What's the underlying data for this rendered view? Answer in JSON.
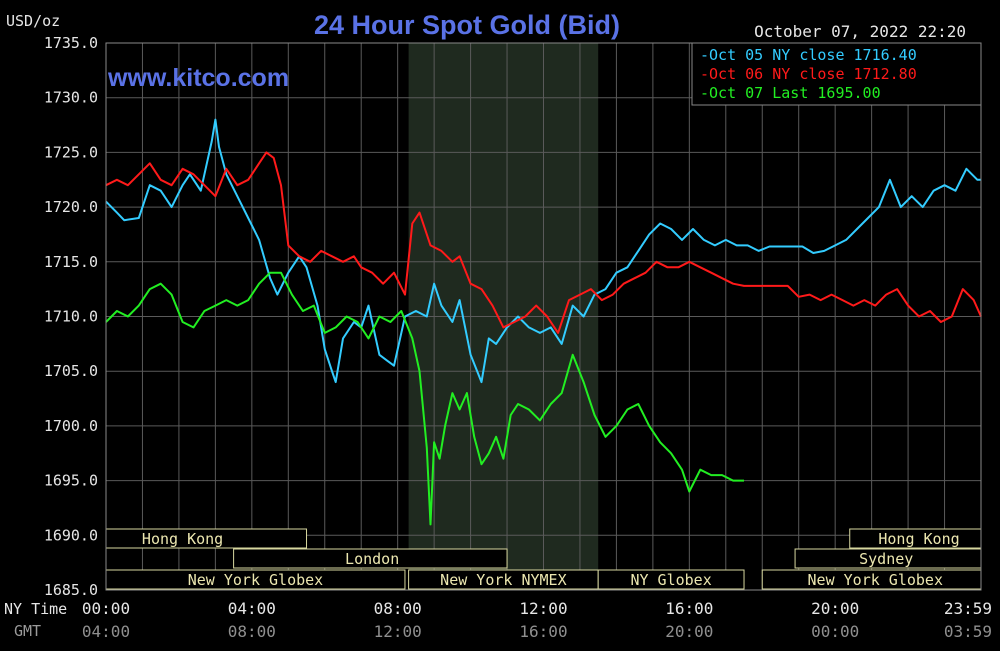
{
  "chart_data": {
    "type": "line",
    "title": "24 Hour Spot Gold (Bid)",
    "timestamp": "October 07, 2022 22:20",
    "ylabel": "USD/oz",
    "watermark": "www.kitco.com",
    "ylim": [
      1685,
      1735
    ],
    "y_ticks": [
      "1735.0",
      "1730.0",
      "1725.0",
      "1720.0",
      "1715.0",
      "1710.0",
      "1705.0",
      "1700.0",
      "1695.0",
      "1690.0",
      "1685.0"
    ],
    "xlim": [
      0,
      24
    ],
    "x_row_labels": {
      "ny": "NY Time",
      "gmt": "GMT"
    },
    "x_ticks_ny": [
      {
        "h": 0,
        "label": "00:00"
      },
      {
        "h": 4,
        "label": "04:00"
      },
      {
        "h": 8,
        "label": "08:00"
      },
      {
        "h": 12,
        "label": "12:00"
      },
      {
        "h": 16,
        "label": "16:00"
      },
      {
        "h": 20,
        "label": "20:00"
      },
      {
        "h": 24,
        "label": "23:59"
      }
    ],
    "x_ticks_gmt": [
      "04:00",
      "08:00",
      "12:00",
      "16:00",
      "20:00",
      "00:00",
      "03:59"
    ],
    "shaded_range": [
      8.3,
      13.5
    ],
    "legend_position": "top-right",
    "legend": [
      {
        "text": "Oct 05 NY close 1716.40",
        "color": "#33ccff"
      },
      {
        "text": "Oct 06 NY close 1712.80",
        "color": "#ff1a1a"
      },
      {
        "text": "Oct 07 Last 1695.00",
        "color": "#22ee22"
      }
    ],
    "sessions": [
      {
        "label": "Hong Kong",
        "row": 0,
        "start": 0,
        "end": 5.5,
        "text_at": 2.1
      },
      {
        "label": "Hong Kong",
        "row": 0,
        "start": 20.4,
        "end": 24,
        "text_at": 22.3
      },
      {
        "label": "London",
        "row": 1,
        "start": 3.5,
        "end": 11,
        "text_at": 7.3
      },
      {
        "label": "Sydney",
        "row": 1,
        "start": 18.9,
        "end": 24,
        "text_at": 21.4
      },
      {
        "label": "New York Globex",
        "row": 2,
        "start": 0,
        "end": 8.2,
        "text_at": 4.1
      },
      {
        "label": "New York NYMEX",
        "row": 2,
        "start": 8.3,
        "end": 13.5,
        "text_at": 10.9
      },
      {
        "label": "NY Globex",
        "row": 2,
        "start": 13.5,
        "end": 17.5,
        "text_at": 15.5
      },
      {
        "label": "New York Globex",
        "row": 2,
        "start": 18,
        "end": 24,
        "text_at": 21.1
      }
    ],
    "series": [
      {
        "name": "Oct 05",
        "color": "#33ccff",
        "x": [
          0,
          0.3,
          0.5,
          0.9,
          1.2,
          1.5,
          1.8,
          2.1,
          2.3,
          2.6,
          2.9,
          3.0,
          3.1,
          3.3,
          3.6,
          3.9,
          4.2,
          4.5,
          4.7,
          5.0,
          5.3,
          5.5,
          5.8,
          6.0,
          6.2,
          6.3,
          6.5,
          6.8,
          7.0,
          7.2,
          7.5,
          7.7,
          7.9,
          8.2,
          8.5,
          8.8,
          9.0,
          9.2,
          9.5,
          9.7,
          10.0,
          10.3,
          10.5,
          10.7,
          11.0,
          11.3,
          11.6,
          11.9,
          12.2,
          12.5,
          12.8,
          13.1,
          13.4,
          13.7,
          14.0,
          14.3,
          14.6,
          14.9,
          15.2,
          15.5,
          15.8,
          16.1,
          16.4,
          16.7,
          17.0,
          17.3,
          17.6,
          17.9,
          18.2,
          18.5,
          18.8,
          19.1,
          19.4,
          19.7,
          20.0,
          20.3,
          20.6,
          20.9,
          21.2,
          21.5,
          21.8,
          22.1,
          22.4,
          22.7,
          23.0,
          23.3,
          23.6,
          23.9,
          24
        ],
        "y": [
          1720.5,
          1719.5,
          1718.8,
          1719.0,
          1722.0,
          1721.5,
          1720.0,
          1722.0,
          1723.0,
          1721.5,
          1726.0,
          1728.0,
          1725.5,
          1723.0,
          1721.0,
          1719.0,
          1717.0,
          1713.5,
          1712.0,
          1714.0,
          1715.5,
          1714.5,
          1711.0,
          1707.0,
          1705.0,
          1704.0,
          1708.0,
          1709.5,
          1709.0,
          1711.0,
          1706.5,
          1706.0,
          1705.5,
          1710.0,
          1710.5,
          1710.0,
          1713.0,
          1711.0,
          1709.5,
          1711.5,
          1706.5,
          1704.0,
          1708.0,
          1707.5,
          1709.0,
          1710.0,
          1709.0,
          1708.5,
          1709.0,
          1707.5,
          1711.0,
          1710.0,
          1712.0,
          1712.5,
          1714.0,
          1714.5,
          1716.0,
          1717.5,
          1718.5,
          1718.0,
          1717.0,
          1718.0,
          1717.0,
          1716.5,
          1717.0,
          1716.5,
          1716.5,
          1716.0,
          1716.4,
          1716.4,
          1716.4,
          1716.4,
          1715.8,
          1716.0,
          1716.5,
          1717.0,
          1718.0,
          1719.0,
          1720.0,
          1722.5,
          1720.0,
          1721.0,
          1720.0,
          1721.5,
          1722.0,
          1721.5,
          1723.5,
          1722.5,
          1722.5
        ]
      },
      {
        "name": "Oct 06",
        "color": "#ff1a1a",
        "x": [
          0,
          0.3,
          0.6,
          0.9,
          1.2,
          1.5,
          1.8,
          2.1,
          2.4,
          2.7,
          3.0,
          3.3,
          3.6,
          3.9,
          4.2,
          4.4,
          4.6,
          4.8,
          5.0,
          5.3,
          5.6,
          5.9,
          6.2,
          6.5,
          6.8,
          7.0,
          7.3,
          7.6,
          7.9,
          8.2,
          8.4,
          8.6,
          8.9,
          9.2,
          9.5,
          9.7,
          10.0,
          10.3,
          10.6,
          10.9,
          11.2,
          11.5,
          11.8,
          12.1,
          12.4,
          12.7,
          13.0,
          13.3,
          13.6,
          13.9,
          14.2,
          14.5,
          14.8,
          15.1,
          15.4,
          15.7,
          16.0,
          16.3,
          16.6,
          16.9,
          17.2,
          17.5,
          17.8,
          18.1,
          18.4,
          18.7,
          19.0,
          19.3,
          19.6,
          19.9,
          20.2,
          20.5,
          20.8,
          21.1,
          21.4,
          21.7,
          22.0,
          22.3,
          22.6,
          22.9,
          23.2,
          23.5,
          23.8,
          24
        ],
        "y": [
          1722.0,
          1722.5,
          1722.0,
          1723.0,
          1724.0,
          1722.5,
          1722.0,
          1723.5,
          1723.0,
          1722.0,
          1721.0,
          1723.5,
          1722.0,
          1722.5,
          1724.0,
          1725.0,
          1724.5,
          1722.0,
          1716.5,
          1715.5,
          1715.0,
          1716.0,
          1715.5,
          1715.0,
          1715.5,
          1714.5,
          1714.0,
          1713.0,
          1714.0,
          1712.0,
          1718.5,
          1719.5,
          1716.5,
          1716.0,
          1715.0,
          1715.5,
          1713.0,
          1712.5,
          1711.0,
          1709.0,
          1709.5,
          1710.0,
          1711.0,
          1710.0,
          1708.5,
          1711.5,
          1712.0,
          1712.5,
          1711.5,
          1712.0,
          1713.0,
          1713.5,
          1714.0,
          1715.0,
          1714.5,
          1714.5,
          1715.0,
          1714.5,
          1714.0,
          1713.5,
          1713.0,
          1712.8,
          1712.8,
          1712.8,
          1712.8,
          1712.8,
          1711.8,
          1712.0,
          1711.5,
          1712.0,
          1711.5,
          1711.0,
          1711.5,
          1711.0,
          1712.0,
          1712.5,
          1711.0,
          1710.0,
          1710.5,
          1709.5,
          1710.0,
          1712.5,
          1711.5,
          1710.0
        ]
      },
      {
        "name": "Oct 07",
        "color": "#22ee22",
        "x": [
          0,
          0.3,
          0.6,
          0.9,
          1.2,
          1.5,
          1.8,
          2.1,
          2.4,
          2.7,
          3.0,
          3.3,
          3.6,
          3.9,
          4.2,
          4.5,
          4.8,
          5.1,
          5.4,
          5.7,
          6.0,
          6.3,
          6.6,
          6.9,
          7.2,
          7.5,
          7.8,
          8.1,
          8.4,
          8.6,
          8.8,
          8.9,
          9.0,
          9.15,
          9.3,
          9.5,
          9.7,
          9.9,
          10.1,
          10.3,
          10.5,
          10.7,
          10.9,
          11.1,
          11.3,
          11.6,
          11.9,
          12.2,
          12.5,
          12.8,
          13.1,
          13.4,
          13.7,
          14.0,
          14.3,
          14.6,
          14.9,
          15.2,
          15.5,
          15.8,
          16.0,
          16.3,
          16.6,
          16.9,
          17.2,
          17.5
        ],
        "y": [
          1709.5,
          1710.5,
          1710.0,
          1711.0,
          1712.5,
          1713.0,
          1712.0,
          1709.5,
          1709.0,
          1710.5,
          1711.0,
          1711.5,
          1711.0,
          1711.5,
          1713.0,
          1714.0,
          1714.0,
          1712.0,
          1710.5,
          1711.0,
          1708.5,
          1709.0,
          1710.0,
          1709.5,
          1708.0,
          1710.0,
          1709.5,
          1710.5,
          1708.0,
          1705.0,
          1698.0,
          1691.0,
          1698.5,
          1697.0,
          1700.0,
          1703.0,
          1701.5,
          1703.0,
          1699.0,
          1696.5,
          1697.5,
          1699.0,
          1697.0,
          1701.0,
          1702.0,
          1701.5,
          1700.5,
          1702.0,
          1703.0,
          1706.5,
          1704.0,
          1701.0,
          1699.0,
          1700.0,
          1701.5,
          1702.0,
          1700.0,
          1698.5,
          1697.5,
          1696.0,
          1694.0,
          1696.0,
          1695.5,
          1695.5,
          1695.0,
          1695.0
        ]
      }
    ]
  }
}
